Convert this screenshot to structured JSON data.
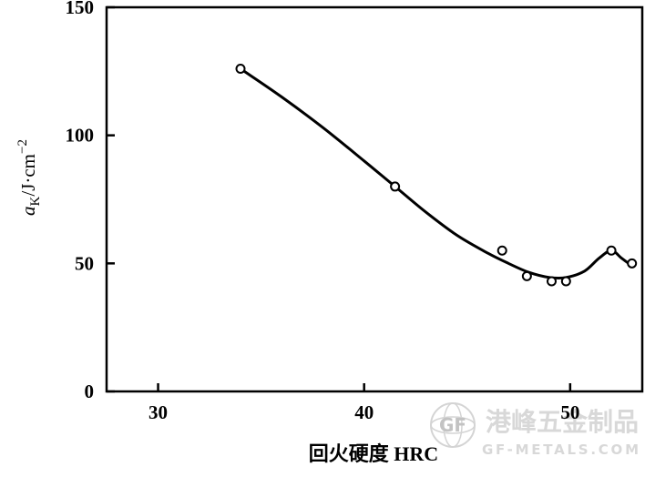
{
  "chart_data": {
    "type": "scatter",
    "title": "",
    "xlabel": "回火硬度  HRC",
    "ylabel": "aK /J·cm−2",
    "ylabel_parts": {
      "main": "a",
      "sub": "K",
      "unit": "/J·cm",
      "sup": "−2"
    },
    "xlim": [
      27.5,
      53.5
    ],
    "ylim": [
      0,
      150
    ],
    "x_ticks": [
      30,
      40,
      50
    ],
    "y_ticks": [
      0,
      50,
      100,
      150
    ],
    "x_tick_labels": [
      "30",
      "40",
      "50"
    ],
    "y_tick_labels": [
      "0",
      "50",
      "100",
      "150"
    ],
    "grid": false,
    "series": [
      {
        "marker": "open-circle",
        "line": "smooth",
        "x": [
          34.0,
          41.5,
          46.7,
          47.9,
          49.1,
          49.8,
          52.0,
          53.0
        ],
        "y": [
          126,
          80,
          55,
          45,
          43,
          43,
          55,
          50
        ]
      }
    ],
    "curve_x": [
      34.0,
      36.0,
      38.0,
      40.0,
      41.5,
      43.0,
      44.5,
      46.0,
      47.0,
      48.0,
      49.0,
      49.8,
      50.7,
      51.4,
      52.0,
      52.5,
      53.0
    ],
    "curve_y": [
      126,
      115,
      103,
      90,
      80,
      70,
      61,
      54,
      50,
      46.5,
      44.5,
      44.5,
      47,
      52,
      55,
      52,
      49
    ],
    "line_color": "#000000"
  },
  "watermark": {
    "brand": "港峰五金制品",
    "url": "GF-METALS.COM",
    "logo_text": "GF",
    "color": "#d8d8d8"
  }
}
